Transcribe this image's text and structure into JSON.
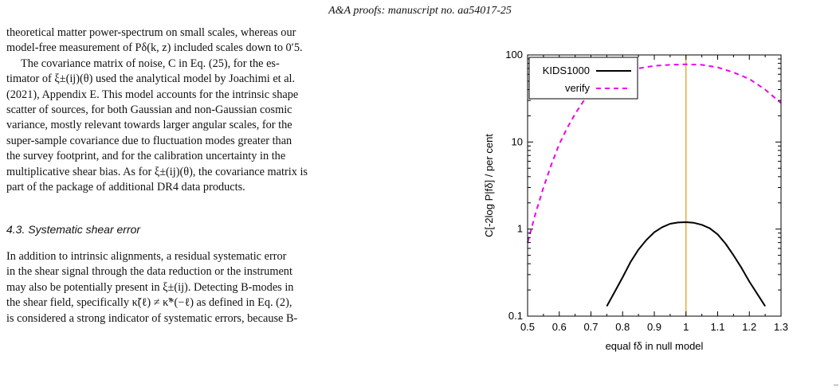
{
  "header": {
    "running_title": "A&A proofs: manuscript no. aa54017-25"
  },
  "text": {
    "p1": [
      "theoretical matter power-spectrum on small scales, whereas our",
      "model-free measurement of Pδ(k, z) included scales down to 0′5."
    ],
    "p2": [
      "The covariance matrix of noise, C in Eq. (25), for the es-",
      "timator of ξ±(ij)(θ) used the analytical model by Joachimi et al.",
      "(2021), Appendix E. This model accounts for the intrinsic shape",
      "scatter of sources, for both Gaussian and non-Gaussian cosmic",
      "variance, mostly relevant towards larger angular scales, for the",
      "super-sample covariance due to fluctuation modes greater than",
      "the survey footprint, and for the calibration uncertainty in the",
      "multiplicative shear bias. As for ξ±(ij)(θ), the covariance matrix is",
      "part of the package of additional DR4 data products."
    ],
    "section_title": "4.3. Systematic shear error",
    "p3": [
      "In addition to intrinsic alignments, a residual systematic error",
      "in the shear signal through the data reduction or the instrument",
      "may also be potentially present in ξ±(ij). Detecting B-modes in",
      "the shear field, specifically κ̃(ℓ) ≠ κ̃*(−ℓ) as defined in Eq. (2),",
      "is considered a strong indicator of systematic errors, because B-"
    ]
  },
  "chart_data": {
    "type": "line",
    "title": "",
    "xlabel": "equal fδ in null model",
    "ylabel": "C[-2log P|fδ] / per cent",
    "xlim": [
      0.5,
      1.3
    ],
    "ylim": [
      0.1,
      100
    ],
    "yscale": "log",
    "x_ticks": [
      "0.5",
      "0.6",
      "0.7",
      "0.8",
      "0.9",
      "1",
      "1.1",
      "1.2",
      "1.3"
    ],
    "y_ticks": [
      "0.1",
      "1",
      "10",
      "100"
    ],
    "grid": false,
    "legend_position": "top-left",
    "vline": {
      "x": 1.0,
      "color": "#e0a020"
    },
    "series": [
      {
        "name": "KIDS1000",
        "color": "#000000",
        "style": "solid",
        "x": [
          0.75,
          0.775,
          0.8,
          0.825,
          0.85,
          0.875,
          0.9,
          0.925,
          0.95,
          0.975,
          1.0,
          1.025,
          1.05,
          1.075,
          1.1,
          1.125,
          1.15,
          1.175,
          1.2,
          1.225,
          1.25
        ],
        "y": [
          0.13,
          0.19,
          0.28,
          0.42,
          0.58,
          0.75,
          0.92,
          1.05,
          1.15,
          1.19,
          1.2,
          1.18,
          1.12,
          1.02,
          0.87,
          0.68,
          0.5,
          0.36,
          0.25,
          0.18,
          0.13
        ]
      },
      {
        "name": "verify",
        "color": "#ee00ee",
        "style": "dashed",
        "x": [
          0.5,
          0.525,
          0.55,
          0.575,
          0.6,
          0.625,
          0.65,
          0.675,
          0.7,
          0.75,
          0.8,
          0.85,
          0.9,
          0.95,
          1.0,
          1.05,
          1.1,
          1.15,
          1.2,
          1.25,
          1.3
        ],
        "y": [
          0.7,
          1.5,
          3.0,
          5.5,
          9.5,
          14.5,
          21,
          29,
          37,
          52,
          63,
          70,
          75,
          77,
          78,
          77,
          72,
          63,
          53,
          40,
          28
        ]
      }
    ]
  }
}
